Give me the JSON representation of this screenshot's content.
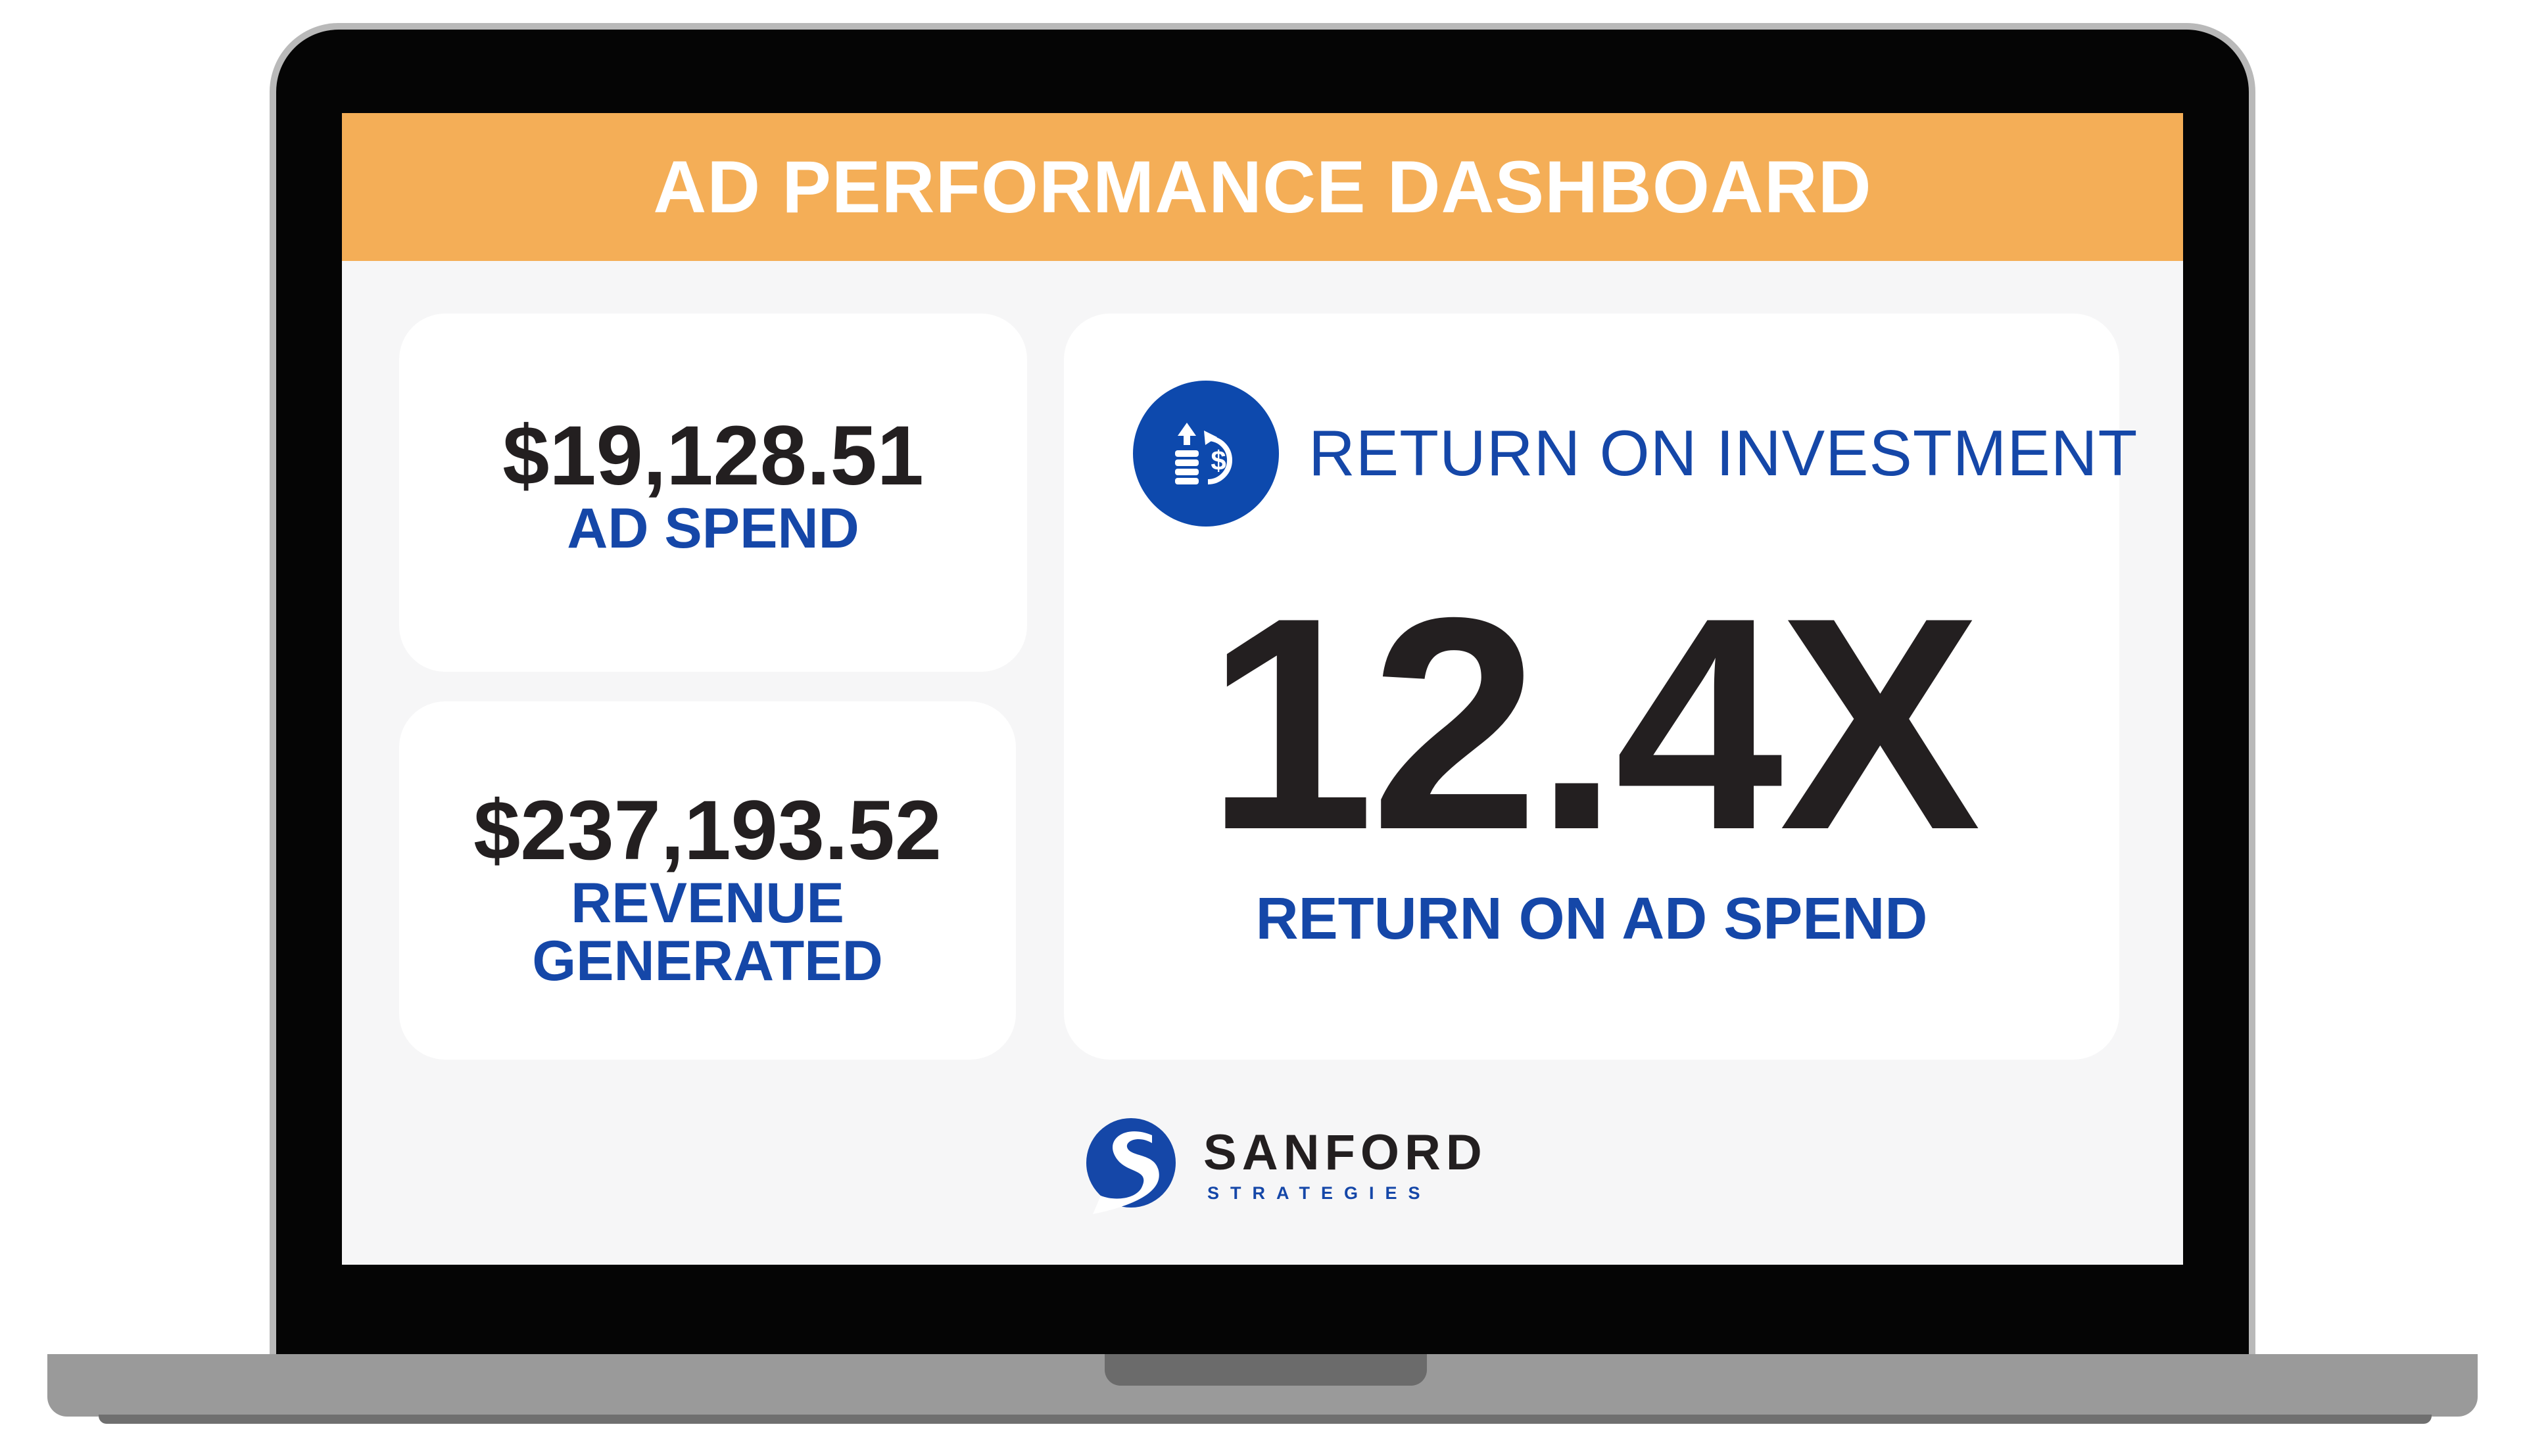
{
  "banner": {
    "title": "AD PERFORMANCE DASHBOARD",
    "color": "#f4ae57"
  },
  "ad_spend": {
    "value": "$19,128.51",
    "label": "AD SPEND"
  },
  "revenue": {
    "value": "$237,193.52",
    "label_line1": "REVENUE",
    "label_line2": "GENERATED"
  },
  "roi": {
    "icon": "investment-return-icon",
    "heading": "RETURN ON INVESTMENT",
    "value": "12.4X",
    "label": "RETURN ON AD SPEND"
  },
  "brand": {
    "name": "SANFORD",
    "tagline": "STRATEGIES",
    "logo_icon": "sanford-s-logo-icon"
  },
  "colors": {
    "accent_orange": "#f4ae57",
    "brand_blue": "#1547a8",
    "text_dark": "#231f20",
    "screen_background": "#f6f6f7"
  }
}
